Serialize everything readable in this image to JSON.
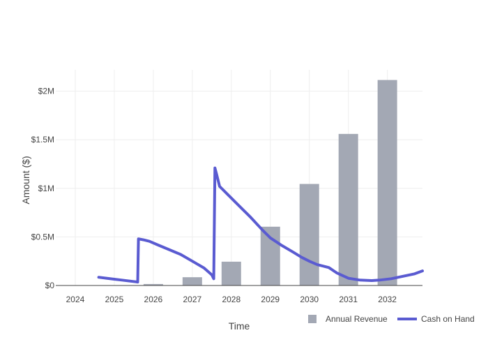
{
  "chart_data": {
    "type": "bar+line",
    "xlabel": "Time",
    "ylabel": "Amount ($)",
    "x_ticks": [
      "2024",
      "2025",
      "2026",
      "2027",
      "2028",
      "2029",
      "2030",
      "2031",
      "2032"
    ],
    "y_ticks": [
      {
        "value": 0,
        "label": "$0"
      },
      {
        "value": 500000,
        "label": "$0.5M"
      },
      {
        "value": 1000000,
        "label": "$1M"
      },
      {
        "value": 1500000,
        "label": "$1.5M"
      },
      {
        "value": 2000000,
        "label": "$2M"
      }
    ],
    "xlim": [
      2023.5,
      2032.9
    ],
    "ylim": [
      0,
      2220000
    ],
    "grid": true,
    "legend": "bottom-right",
    "series": [
      {
        "name": "Annual Revenue",
        "type": "bar",
        "color": "#a3a8b4",
        "x": [
          2026,
          2027,
          2028,
          2029,
          2030,
          2031,
          2032
        ],
        "values": [
          15000,
          85000,
          245000,
          605000,
          1045000,
          1560000,
          2115000
        ]
      },
      {
        "name": "Cash on Hand",
        "type": "line",
        "color": "#5a5bd1",
        "x": [
          2024.6,
          2024.8,
          2025.0,
          2025.2,
          2025.4,
          2025.55,
          2025.6,
          2025.62,
          2025.75,
          2025.9,
          2026.1,
          2026.4,
          2026.7,
          2027.0,
          2027.3,
          2027.5,
          2027.55,
          2027.58,
          2027.62,
          2027.7,
          2027.9,
          2028.2,
          2028.5,
          2028.8,
          2029.0,
          2029.3,
          2029.6,
          2029.8,
          2030.0,
          2030.2,
          2030.5,
          2030.7,
          2031.0,
          2031.3,
          2031.6,
          2031.8,
          2032.1,
          2032.4,
          2032.7,
          2032.9
        ],
        "values": [
          85000,
          75000,
          65000,
          55000,
          45000,
          38000,
          35000,
          480000,
          470000,
          455000,
          420000,
          370000,
          320000,
          250000,
          180000,
          110000,
          70000,
          1210000,
          1150000,
          1020000,
          940000,
          820000,
          700000,
          570000,
          490000,
          410000,
          340000,
          290000,
          250000,
          215000,
          185000,
          130000,
          75000,
          55000,
          50000,
          55000,
          70000,
          95000,
          120000,
          150000
        ]
      }
    ]
  }
}
